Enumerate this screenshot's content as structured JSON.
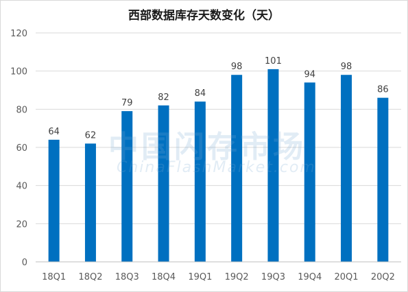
{
  "chart_data": {
    "type": "bar",
    "title": "西部数据库存天数变化（天）",
    "categories": [
      "18Q1",
      "18Q2",
      "18Q3",
      "18Q4",
      "19Q1",
      "19Q2",
      "19Q3",
      "19Q4",
      "20Q1",
      "20Q2"
    ],
    "values": [
      64,
      62,
      79,
      82,
      84,
      98,
      101,
      94,
      98,
      86
    ],
    "xlabel": "",
    "ylabel": "",
    "ylim": [
      0,
      120
    ],
    "yticks": [
      0,
      20,
      40,
      60,
      80,
      100,
      120
    ],
    "grid": true,
    "data_labels": true,
    "bar_color": "#0070c0",
    "grid_color": "#d9d9d9"
  },
  "watermark": {
    "cn": "中国闪存市场",
    "en": "ChinaFlashMarket.com"
  }
}
